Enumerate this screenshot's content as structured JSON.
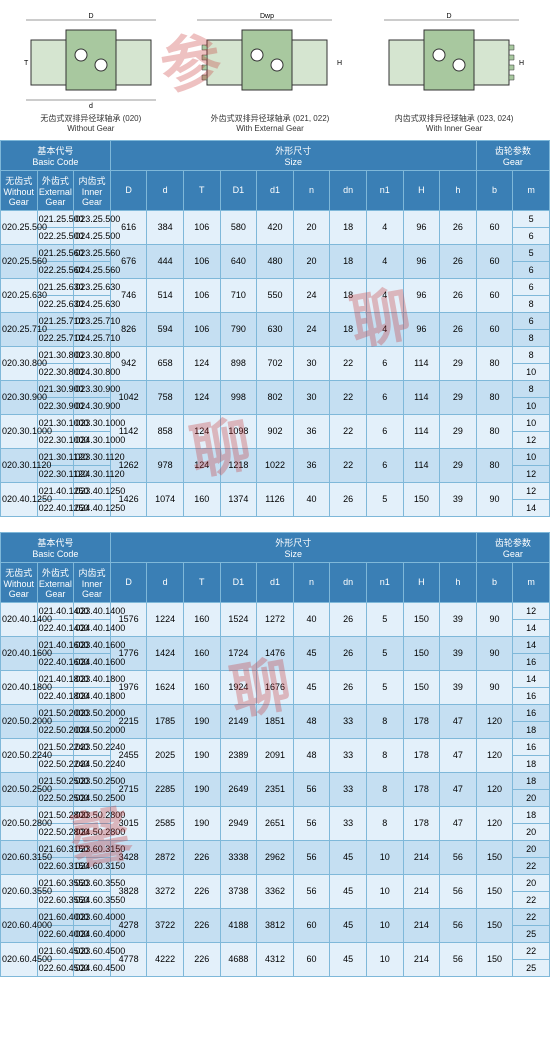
{
  "diagrams": [
    {
      "caption_cn": "无齿式双排异径球轴承 (020)",
      "caption_en": "Without Gear"
    },
    {
      "caption_cn": "外齿式双排异径球轴承 (021, 022)",
      "caption_en": "With External Gear"
    },
    {
      "caption_cn": "内齿式双排异径球轴承 (023, 024)",
      "caption_en": "With Inner Gear"
    }
  ],
  "headers": {
    "basic_code_cn": "基本代号",
    "basic_code_en": "Basic Code",
    "size_cn": "外形尺寸",
    "size_en": "Size",
    "gear_cn": "齿轮参数",
    "gear_en": "Gear",
    "wg_cn": "无齿式",
    "wg_en": "Without Gear",
    "eg_cn": "外齿式",
    "eg_en": "External Gear",
    "ig_cn": "内齿式",
    "ig_en": "Inner Gear",
    "cols": [
      "D",
      "d",
      "T",
      "D1",
      "d1",
      "n",
      "dn",
      "n1",
      "H",
      "h",
      "b",
      "m"
    ]
  },
  "table1": [
    {
      "wg": "020.25.500",
      "eg": [
        "021.25.500",
        "022.25.500"
      ],
      "ig": [
        "023.25.500",
        "024.25.500"
      ],
      "v": [
        "616",
        "384",
        "106",
        "580",
        "420",
        "20",
        "18",
        "4",
        "96",
        "26",
        "60"
      ],
      "m": [
        "5",
        "6"
      ]
    },
    {
      "wg": "020.25.560",
      "eg": [
        "021.25.560",
        "022.25.560"
      ],
      "ig": [
        "023.25.560",
        "024.25.560"
      ],
      "v": [
        "676",
        "444",
        "106",
        "640",
        "480",
        "20",
        "18",
        "4",
        "96",
        "26",
        "60"
      ],
      "m": [
        "5",
        "6"
      ]
    },
    {
      "wg": "020.25.630",
      "eg": [
        "021.25.630",
        "022.25.630"
      ],
      "ig": [
        "023.25.630",
        "024.25.630"
      ],
      "v": [
        "746",
        "514",
        "106",
        "710",
        "550",
        "24",
        "18",
        "4",
        "96",
        "26",
        "60"
      ],
      "m": [
        "6",
        "8"
      ]
    },
    {
      "wg": "020.25.710",
      "eg": [
        "021.25.710",
        "022.25.710"
      ],
      "ig": [
        "023.25.710",
        "024.25.710"
      ],
      "v": [
        "826",
        "594",
        "106",
        "790",
        "630",
        "24",
        "18",
        "4",
        "96",
        "26",
        "60"
      ],
      "m": [
        "6",
        "8"
      ]
    },
    {
      "wg": "020.30.800",
      "eg": [
        "021.30.800",
        "022.30.800"
      ],
      "ig": [
        "023.30.800",
        "024.30.800"
      ],
      "v": [
        "942",
        "658",
        "124",
        "898",
        "702",
        "30",
        "22",
        "6",
        "114",
        "29",
        "80"
      ],
      "m": [
        "8",
        "10"
      ]
    },
    {
      "wg": "020.30.900",
      "eg": [
        "021.30.900",
        "022.30.900"
      ],
      "ig": [
        "023.30.900",
        "024.30.900"
      ],
      "v": [
        "1042",
        "758",
        "124",
        "998",
        "802",
        "30",
        "22",
        "6",
        "114",
        "29",
        "80"
      ],
      "m": [
        "8",
        "10"
      ]
    },
    {
      "wg": "020.30.1000",
      "eg": [
        "021.30.1000",
        "022.30.1000"
      ],
      "ig": [
        "023.30.1000",
        "024.30.1000"
      ],
      "v": [
        "1142",
        "858",
        "124",
        "1098",
        "902",
        "36",
        "22",
        "6",
        "114",
        "29",
        "80"
      ],
      "m": [
        "10",
        "12"
      ]
    },
    {
      "wg": "020.30.1120",
      "eg": [
        "021.30.1120",
        "022.30.1120"
      ],
      "ig": [
        "023.30.1120",
        "024.30.1120"
      ],
      "v": [
        "1262",
        "978",
        "124",
        "1218",
        "1022",
        "36",
        "22",
        "6",
        "114",
        "29",
        "80"
      ],
      "m": [
        "10",
        "12"
      ]
    },
    {
      "wg": "020.40.1250",
      "eg": [
        "021.40.1250",
        "022.40.1250"
      ],
      "ig": [
        "023.40.1250",
        "024.40.1250"
      ],
      "v": [
        "1426",
        "1074",
        "160",
        "1374",
        "1126",
        "40",
        "26",
        "5",
        "150",
        "39",
        "90"
      ],
      "m": [
        "12",
        "14"
      ]
    }
  ],
  "table2": [
    {
      "wg": "020.40.1400",
      "eg": [
        "021.40.1400",
        "022.40.1400"
      ],
      "ig": [
        "023.40.1400",
        "024.40.1400"
      ],
      "v": [
        "1576",
        "1224",
        "160",
        "1524",
        "1272",
        "40",
        "26",
        "5",
        "150",
        "39",
        "90"
      ],
      "m": [
        "12",
        "14"
      ]
    },
    {
      "wg": "020.40.1600",
      "eg": [
        "021.40.1600",
        "022.40.1600"
      ],
      "ig": [
        "023.40.1600",
        "024.40.1600"
      ],
      "v": [
        "1776",
        "1424",
        "160",
        "1724",
        "1476",
        "45",
        "26",
        "5",
        "150",
        "39",
        "90"
      ],
      "m": [
        "14",
        "16"
      ]
    },
    {
      "wg": "020.40.1800",
      "eg": [
        "021.40.1800",
        "022.40.1800"
      ],
      "ig": [
        "023.40.1800",
        "024.40.1800"
      ],
      "v": [
        "1976",
        "1624",
        "160",
        "1924",
        "1676",
        "45",
        "26",
        "5",
        "150",
        "39",
        "90"
      ],
      "m": [
        "14",
        "16"
      ]
    },
    {
      "wg": "020.50.2000",
      "eg": [
        "021.50.2000",
        "022.50.2000"
      ],
      "ig": [
        "023.50.2000",
        "024.50.2000"
      ],
      "v": [
        "2215",
        "1785",
        "190",
        "2149",
        "1851",
        "48",
        "33",
        "8",
        "178",
        "47",
        "120"
      ],
      "m": [
        "16",
        "18"
      ]
    },
    {
      "wg": "020.50.2240",
      "eg": [
        "021.50.2240",
        "022.50.2240"
      ],
      "ig": [
        "023.50.2240",
        "024.50.2240"
      ],
      "v": [
        "2455",
        "2025",
        "190",
        "2389",
        "2091",
        "48",
        "33",
        "8",
        "178",
        "47",
        "120"
      ],
      "m": [
        "16",
        "18"
      ]
    },
    {
      "wg": "020.50.2500",
      "eg": [
        "021.50.2500",
        "022.50.2500"
      ],
      "ig": [
        "023.50.2500",
        "024.50.2500"
      ],
      "v": [
        "2715",
        "2285",
        "190",
        "2649",
        "2351",
        "56",
        "33",
        "8",
        "178",
        "47",
        "120"
      ],
      "m": [
        "18",
        "20"
      ]
    },
    {
      "wg": "020.50.2800",
      "eg": [
        "021.50.2800",
        "022.50.2800"
      ],
      "ig": [
        "023.50.2800",
        "024.50.2800"
      ],
      "v": [
        "3015",
        "2585",
        "190",
        "2949",
        "2651",
        "56",
        "33",
        "8",
        "178",
        "47",
        "120"
      ],
      "m": [
        "18",
        "20"
      ]
    },
    {
      "wg": "020.60.3150",
      "eg": [
        "021.60.3150",
        "022.60.3150"
      ],
      "ig": [
        "023.60.3150",
        "024.60.3150"
      ],
      "v": [
        "3428",
        "2872",
        "226",
        "3338",
        "2962",
        "56",
        "45",
        "10",
        "214",
        "56",
        "150"
      ],
      "m": [
        "20",
        "22"
      ]
    },
    {
      "wg": "020.60.3550",
      "eg": [
        "021.60.3550",
        "022.60.3550"
      ],
      "ig": [
        "023.60.3550",
        "024.60.3550"
      ],
      "v": [
        "3828",
        "3272",
        "226",
        "3738",
        "3362",
        "56",
        "45",
        "10",
        "214",
        "56",
        "150"
      ],
      "m": [
        "20",
        "22"
      ]
    },
    {
      "wg": "020.60.4000",
      "eg": [
        "021.60.4000",
        "022.60.4000"
      ],
      "ig": [
        "023.60.4000",
        "024.60.4000"
      ],
      "v": [
        "4278",
        "3722",
        "226",
        "4188",
        "3812",
        "60",
        "45",
        "10",
        "214",
        "56",
        "150"
      ],
      "m": [
        "22",
        "25"
      ]
    },
    {
      "wg": "020.60.4500",
      "eg": [
        "021.60.4500",
        "022.60.4500"
      ],
      "ig": [
        "023.60.4500",
        "024.60.4500"
      ],
      "v": [
        "4778",
        "4222",
        "226",
        "4688",
        "4312",
        "60",
        "45",
        "10",
        "214",
        "56",
        "150"
      ],
      "m": [
        "22",
        "25"
      ]
    }
  ],
  "colors": {
    "header_bg": "#3a7fb5",
    "border": "#7fb8d9",
    "row_a": "#e3f0fa",
    "row_b": "#c5dff2"
  }
}
